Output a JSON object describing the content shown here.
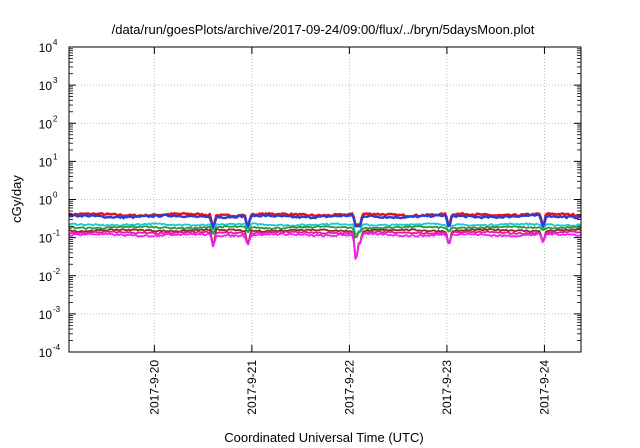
{
  "chart_data": {
    "type": "line",
    "title": "/data/run/goesPlots/archive/2017-09-24/09:00/flux/../bryn/5daysMoon.plot",
    "xlabel": "Coordinated Universal Time (UTC)",
    "ylabel": "cGy/day",
    "yscale": "log",
    "ylim": [
      0.0001,
      10000
    ],
    "y_ticks": [
      {
        "base": "10",
        "exp": "-4"
      },
      {
        "base": "10",
        "exp": "-3"
      },
      {
        "base": "10",
        "exp": "-2"
      },
      {
        "base": "10",
        "exp": "-1"
      },
      {
        "base": "10",
        "exp": "0"
      },
      {
        "base": "10",
        "exp": "1"
      },
      {
        "base": "10",
        "exp": "2"
      },
      {
        "base": "10",
        "exp": "3"
      },
      {
        "base": "10",
        "exp": "4"
      }
    ],
    "xlim": [
      "2017-09-19 03:00",
      "2017-09-24 09:00"
    ],
    "x_ticks": [
      "2017-9-20",
      "2017-9-21",
      "2017-9-22",
      "2017-9-23",
      "2017-9-24"
    ],
    "grid": true,
    "series": [
      {
        "color": "#e8101a",
        "base": 0.4,
        "amp": 0.05,
        "noise": 0.06
      },
      {
        "color": "#2a3fd0",
        "base": 0.36,
        "amp": 0.05,
        "noise": 0.06
      },
      {
        "color": "#19c7d6",
        "base": 0.22,
        "amp": 0.04,
        "noise": 0.05
      },
      {
        "color": "#2e9a3a",
        "base": 0.185,
        "amp": 0.04,
        "noise": 0.05
      },
      {
        "color": "#8a2a2a",
        "base": 0.155,
        "amp": 0.04,
        "noise": 0.05
      },
      {
        "color": "#e81a9a",
        "base": 0.135,
        "amp": 0.04,
        "noise": 0.05
      },
      {
        "color": "#ee22ee",
        "base": 0.118,
        "amp": 0.05,
        "noise": 0.06
      }
    ],
    "dips": [
      {
        "at": "2017-09-20 14:30",
        "min": 0.055
      },
      {
        "at": "2017-09-20 23:00",
        "min": 0.06
      },
      {
        "at": "2017-09-22 01:40",
        "min": 0.017
      },
      {
        "at": "2017-09-22 02:30",
        "min": 0.06
      },
      {
        "at": "2017-09-23 00:30",
        "min": 0.06
      },
      {
        "at": "2017-09-23 23:40",
        "min": 0.07
      }
    ]
  }
}
